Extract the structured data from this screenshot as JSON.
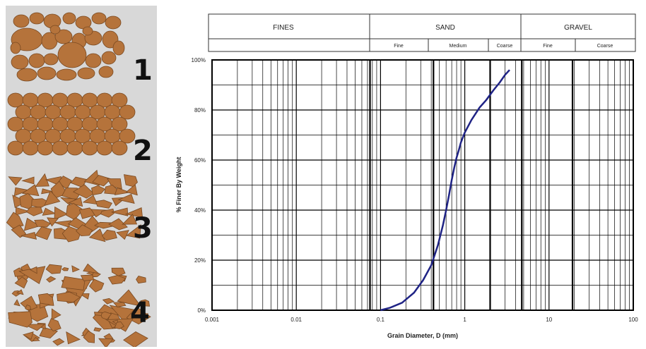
{
  "samples": [
    {
      "number": "1",
      "description": "rounded grains, mixed sizes"
    },
    {
      "number": "2",
      "description": "rounded grains, uniform size"
    },
    {
      "number": "3",
      "description": "angular grains, uniform"
    },
    {
      "number": "4",
      "description": "angular grains, mixed sizes"
    }
  ],
  "colors": {
    "grain_fill": "#b5733b",
    "grain_stroke": "#7a4a22",
    "panel_bg": "#d8d8d8",
    "curve": "#1f2385",
    "grid": "#000000"
  },
  "header": {
    "fines": "FINES",
    "sand": "SAND",
    "gravel": "GRAVEL",
    "sand_sub": [
      "Fine",
      "Medium",
      "Coarse"
    ],
    "gravel_sub": [
      "Fine",
      "Coarse"
    ]
  },
  "chart_data": {
    "type": "line",
    "title": "",
    "xlabel": "Grain Diameter, D (mm)",
    "ylabel": "% Finer By Weight",
    "x_scale": "log",
    "xlim": [
      0.001,
      100
    ],
    "ylim": [
      0,
      100
    ],
    "x_ticks": [
      "0.001",
      "0.01",
      "0.1",
      "1",
      "10",
      "100"
    ],
    "y_ticks": [
      "0%",
      "20%",
      "40%",
      "60%",
      "80%",
      "100%"
    ],
    "grid": true,
    "grain_size_boundaries_mm": [
      0.075,
      0.425,
      2,
      4.75,
      19
    ],
    "series": [
      {
        "x": [
          0.1,
          0.13,
          0.18,
          0.25,
          0.32,
          0.4,
          0.48,
          0.55,
          0.6,
          0.65,
          0.7,
          0.75,
          0.8,
          0.85,
          0.9,
          1.0,
          1.2,
          1.5,
          1.8,
          2.2,
          2.6,
          3.0,
          3.4
        ],
        "y": [
          0,
          1,
          3,
          7,
          12,
          18,
          26,
          34,
          40,
          46,
          52,
          57,
          61,
          64,
          67,
          71,
          76,
          81,
          84,
          88,
          91,
          94,
          96
        ]
      }
    ]
  }
}
